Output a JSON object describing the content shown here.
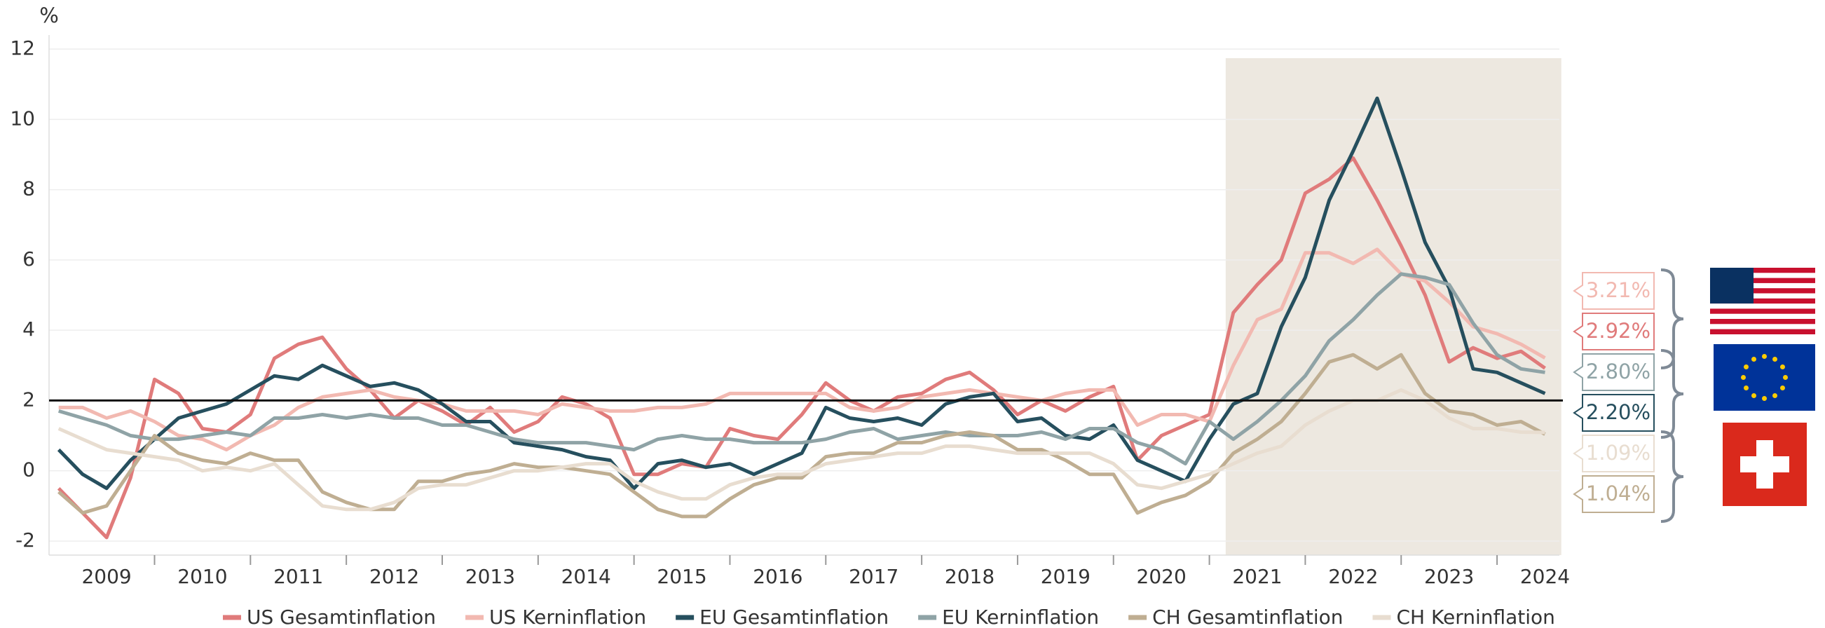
{
  "chart_data": {
    "type": "line",
    "ylabel": "%",
    "x": [
      2009,
      2009.25,
      2009.5,
      2009.75,
      2010,
      2010.25,
      2010.5,
      2010.75,
      2011,
      2011.25,
      2011.5,
      2011.75,
      2012,
      2012.25,
      2012.5,
      2012.75,
      2013,
      2013.25,
      2013.5,
      2013.75,
      2014,
      2014.25,
      2014.5,
      2014.75,
      2015,
      2015.25,
      2015.5,
      2015.75,
      2016,
      2016.25,
      2016.5,
      2016.75,
      2017,
      2017.25,
      2017.5,
      2017.75,
      2018,
      2018.25,
      2018.5,
      2018.75,
      2019,
      2019.25,
      2019.5,
      2019.75,
      2020,
      2020.25,
      2020.5,
      2020.75,
      2021,
      2021.25,
      2021.5,
      2021.75,
      2022,
      2022.25,
      2022.5,
      2022.75,
      2023,
      2023.25,
      2023.5,
      2023.75,
      2024,
      2024.25,
      2024.5
    ],
    "xlim": [
      2008.9,
      2024.65
    ],
    "xticks": [
      2009,
      2010,
      2011,
      2012,
      2013,
      2014,
      2015,
      2016,
      2017,
      2018,
      2019,
      2020,
      2021,
      2022,
      2023,
      2024
    ],
    "ylim": [
      -2.4,
      12.4
    ],
    "yticks": [
      -2,
      0,
      2,
      4,
      6,
      8,
      10,
      12
    ],
    "grid": true,
    "reference_line": 2,
    "highlight_x": [
      2021.17,
      2024.67
    ],
    "highlight_color": "#ede8e0",
    "legend": "bottom",
    "series": [
      {
        "name": "US Gesamtinflation",
        "color": "#e07b7b",
        "end_label": "2.92%",
        "values": [
          -0.5,
          -1.2,
          -1.9,
          -0.2,
          2.6,
          2.2,
          1.2,
          1.1,
          1.6,
          3.2,
          3.6,
          3.8,
          2.9,
          2.3,
          1.5,
          2.0,
          1.7,
          1.3,
          1.8,
          1.1,
          1.4,
          2.1,
          1.9,
          1.5,
          -0.1,
          -0.1,
          0.2,
          0.1,
          1.2,
          1.0,
          0.9,
          1.6,
          2.5,
          2.0,
          1.7,
          2.1,
          2.2,
          2.6,
          2.8,
          2.3,
          1.6,
          2.0,
          1.7,
          2.1,
          2.4,
          0.3,
          1.0,
          1.3,
          1.6,
          4.5,
          5.3,
          6.0,
          7.9,
          8.3,
          8.9,
          7.7,
          6.4,
          5.0,
          3.1,
          3.5,
          3.2,
          3.4,
          2.92
        ]
      },
      {
        "name": "US Kerninflation",
        "color": "#f2b9b1",
        "end_label": "3.21%",
        "values": [
          1.8,
          1.8,
          1.5,
          1.7,
          1.4,
          1.0,
          0.9,
          0.6,
          1.0,
          1.3,
          1.8,
          2.1,
          2.2,
          2.3,
          2.1,
          2.0,
          1.9,
          1.7,
          1.7,
          1.7,
          1.6,
          1.9,
          1.8,
          1.7,
          1.7,
          1.8,
          1.8,
          1.9,
          2.2,
          2.2,
          2.2,
          2.2,
          2.2,
          1.8,
          1.7,
          1.8,
          2.1,
          2.2,
          2.3,
          2.2,
          2.1,
          2.0,
          2.2,
          2.3,
          2.3,
          1.3,
          1.6,
          1.6,
          1.4,
          3.0,
          4.3,
          4.6,
          6.2,
          6.2,
          5.9,
          6.3,
          5.6,
          5.4,
          4.8,
          4.1,
          3.9,
          3.6,
          3.21
        ]
      },
      {
        "name": "EU Gesamtinflation",
        "color": "#264f5e",
        "end_label": "2.20%",
        "values": [
          0.6,
          -0.1,
          -0.5,
          0.3,
          0.9,
          1.5,
          1.7,
          1.9,
          2.3,
          2.7,
          2.6,
          3.0,
          2.7,
          2.4,
          2.5,
          2.3,
          1.9,
          1.4,
          1.4,
          0.8,
          0.7,
          0.6,
          0.4,
          0.3,
          -0.5,
          0.2,
          0.3,
          0.1,
          0.2,
          -0.1,
          0.2,
          0.5,
          1.8,
          1.5,
          1.4,
          1.5,
          1.3,
          1.9,
          2.1,
          2.2,
          1.4,
          1.5,
          1.0,
          0.9,
          1.3,
          0.3,
          0.0,
          -0.3,
          0.9,
          1.9,
          2.2,
          4.1,
          5.5,
          7.7,
          9.1,
          10.6,
          8.6,
          6.5,
          5.2,
          2.9,
          2.8,
          2.5,
          2.2
        ]
      },
      {
        "name": "EU Kerninflation",
        "color": "#8fa3a6",
        "end_label": "2.80%",
        "values": [
          1.7,
          1.5,
          1.3,
          1.0,
          0.9,
          0.9,
          1.0,
          1.1,
          1.0,
          1.5,
          1.5,
          1.6,
          1.5,
          1.6,
          1.5,
          1.5,
          1.3,
          1.3,
          1.1,
          0.9,
          0.8,
          0.8,
          0.8,
          0.7,
          0.6,
          0.9,
          1.0,
          0.9,
          0.9,
          0.8,
          0.8,
          0.8,
          0.9,
          1.1,
          1.2,
          0.9,
          1.0,
          1.1,
          1.0,
          1.0,
          1.0,
          1.1,
          0.9,
          1.2,
          1.2,
          0.8,
          0.6,
          0.2,
          1.4,
          0.9,
          1.4,
          2.0,
          2.7,
          3.7,
          4.3,
          5.0,
          5.6,
          5.5,
          5.3,
          4.2,
          3.3,
          2.9,
          2.8
        ]
      },
      {
        "name": "CH Gesamtinflation",
        "color": "#bfae92",
        "end_label": "1.04%",
        "values": [
          -0.6,
          -1.2,
          -1.0,
          0.0,
          1.0,
          0.5,
          0.3,
          0.2,
          0.5,
          0.3,
          0.3,
          -0.6,
          -0.9,
          -1.1,
          -1.1,
          -0.3,
          -0.3,
          -0.1,
          0.0,
          0.2,
          0.1,
          0.1,
          0.0,
          -0.1,
          -0.6,
          -1.1,
          -1.3,
          -1.3,
          -0.8,
          -0.4,
          -0.2,
          -0.2,
          0.4,
          0.5,
          0.5,
          0.8,
          0.8,
          1.0,
          1.1,
          1.0,
          0.6,
          0.6,
          0.3,
          -0.1,
          -0.1,
          -1.2,
          -0.9,
          -0.7,
          -0.3,
          0.5,
          0.9,
          1.4,
          2.2,
          3.1,
          3.3,
          2.9,
          3.3,
          2.2,
          1.7,
          1.6,
          1.3,
          1.4,
          1.04
        ]
      },
      {
        "name": "CH Kerninflation",
        "color": "#e8ddd0",
        "end_label": "1.09%",
        "values": [
          1.2,
          0.9,
          0.6,
          0.5,
          0.4,
          0.3,
          0.0,
          0.1,
          0.0,
          0.2,
          -0.4,
          -1.0,
          -1.1,
          -1.1,
          -0.9,
          -0.5,
          -0.4,
          -0.4,
          -0.2,
          0.0,
          0.0,
          0.1,
          0.2,
          0.2,
          -0.3,
          -0.6,
          -0.8,
          -0.8,
          -0.4,
          -0.2,
          -0.1,
          -0.1,
          0.2,
          0.3,
          0.4,
          0.5,
          0.5,
          0.7,
          0.7,
          0.6,
          0.5,
          0.5,
          0.5,
          0.5,
          0.2,
          -0.4,
          -0.5,
          -0.3,
          -0.1,
          0.2,
          0.5,
          0.7,
          1.3,
          1.7,
          2.0,
          2.0,
          2.3,
          2.0,
          1.5,
          1.2,
          1.2,
          1.1,
          1.09
        ]
      }
    ]
  }
}
